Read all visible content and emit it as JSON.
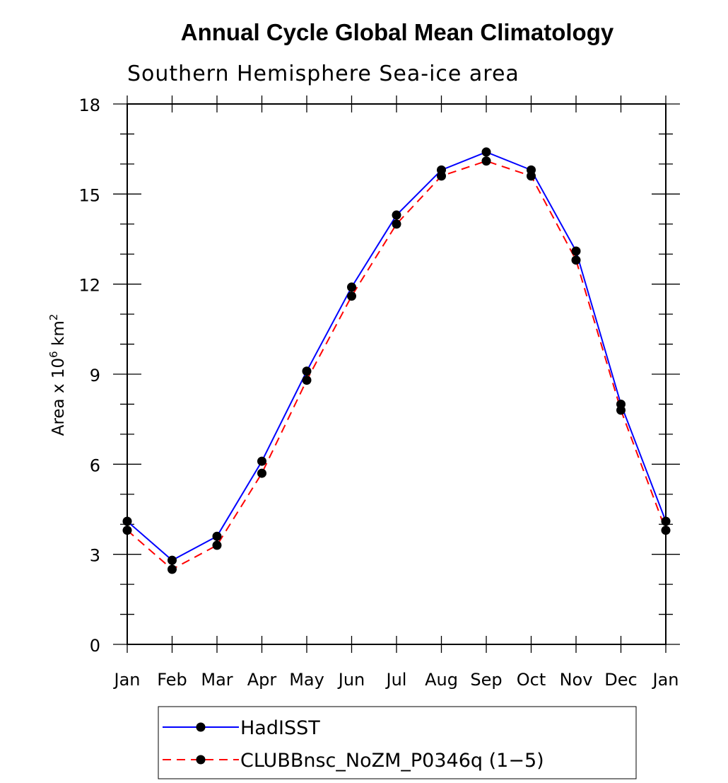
{
  "chart_data": {
    "type": "line",
    "title": "Annual Cycle Global Mean Climatology",
    "subtitle": "Southern Hemisphere Sea-ice area",
    "ylabel_prefix": "Area x 10",
    "ylabel_exp1": "6",
    "ylabel_mid": " km",
    "ylabel_exp2": "2",
    "xlabel": "",
    "categories": [
      "Jan",
      "Feb",
      "Mar",
      "Apr",
      "May",
      "Jun",
      "Jul",
      "Aug",
      "Sep",
      "Oct",
      "Nov",
      "Dec",
      "Jan"
    ],
    "ylim": [
      0,
      18
    ],
    "yticks": [
      0,
      3,
      6,
      9,
      12,
      15,
      18
    ],
    "ytick_labels": [
      "0",
      "3",
      "6",
      "9",
      "12",
      "15",
      "18"
    ],
    "series": [
      {
        "name": "HadISST",
        "color": "#0000ff",
        "dash": "solid",
        "values": [
          4.1,
          2.8,
          3.6,
          6.1,
          9.1,
          11.9,
          14.3,
          15.8,
          16.4,
          15.8,
          13.1,
          8.0,
          4.1
        ]
      },
      {
        "name": "CLUBBnsc_NoZM_P0346q (1-5)",
        "color": "#ff0000",
        "dash": "dashed",
        "values": [
          3.8,
          2.5,
          3.3,
          5.7,
          8.8,
          11.6,
          14.0,
          15.6,
          16.1,
          15.6,
          12.8,
          7.8,
          3.8
        ]
      }
    ],
    "legend_labels": [
      "HadISST",
      "CLUBBnsc_NoZM_P0346q (1−5)"
    ],
    "legend_position": "bottom-center",
    "grid": false
  }
}
